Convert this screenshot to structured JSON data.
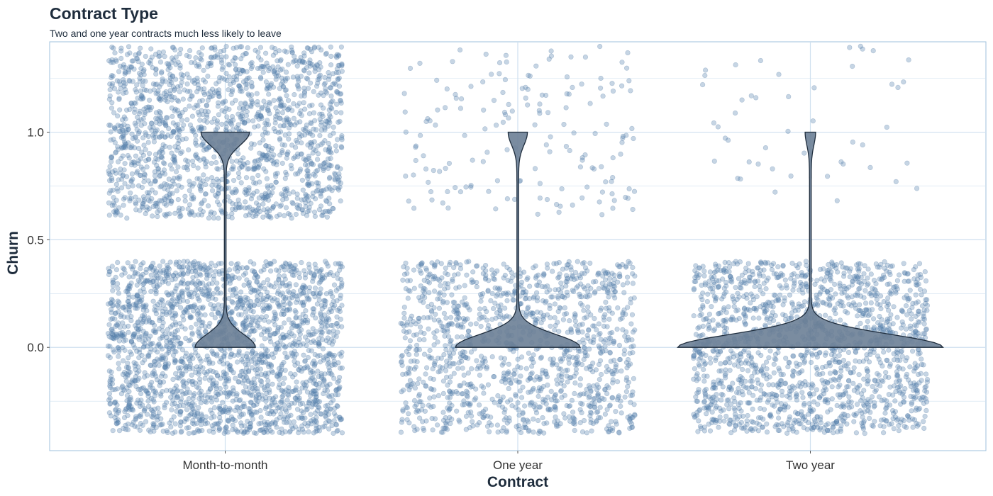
{
  "chart_data": {
    "type": "scatter",
    "subtype": "jittered-points-with-violin",
    "title": "Contract Type",
    "subtitle": "Two and one year contracts much less likely to leave",
    "xlabel": "Contract",
    "ylabel": "Churn",
    "categories": [
      "Month-to-month",
      "One year",
      "Two year"
    ],
    "ylim": [
      -0.48,
      1.42
    ],
    "y_ticks": [
      0.0,
      0.5,
      1.0
    ],
    "y_tick_labels": [
      "0.0",
      "0.5",
      "1.0"
    ],
    "grid": true,
    "legend": "none",
    "colors": {
      "points": "#5b86b3",
      "point_edge": "#4a739f",
      "violin_fill": "#6b7f96",
      "violin_stroke": "#1f2d3d",
      "grid": "#cfe0ef",
      "panel_border": "#9fc0dc"
    },
    "series": [
      {
        "category": "Month-to-month",
        "jitter_width": 0.4,
        "jitter_height": 0.4,
        "points_churn_0": 2220,
        "points_churn_1": 1655,
        "churn_rate": 0.427,
        "violin_half_width_at_0": 0.1,
        "violin_half_width_at_1": 0.08
      },
      {
        "category": "One year",
        "jitter_width": 0.4,
        "jitter_height": 0.4,
        "points_churn_0": 1307,
        "points_churn_1": 166,
        "churn_rate": 0.113,
        "violin_half_width_at_0": 0.21,
        "violin_half_width_at_1": 0.03
      },
      {
        "category": "Two year",
        "jitter_width": 0.4,
        "jitter_height": 0.4,
        "points_churn_0": 1647,
        "points_churn_1": 48,
        "churn_rate": 0.028,
        "violin_half_width_at_0": 0.45,
        "violin_half_width_at_1": 0.015
      }
    ]
  }
}
